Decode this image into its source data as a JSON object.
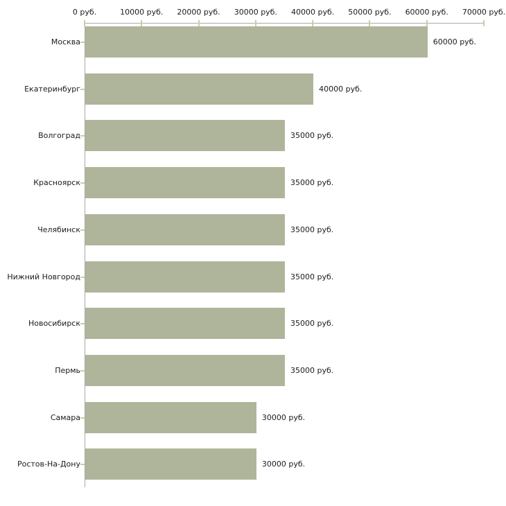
{
  "chart_data": {
    "type": "bar",
    "orientation": "horizontal",
    "categories": [
      "Москва",
      "Екатеринбург",
      "Волгоград",
      "Красноярск",
      "Челябинск",
      "Нижний Новгород",
      "Новосибирск",
      "Пермь",
      "Самара",
      "Ростов-На-Дону"
    ],
    "values": [
      60000,
      40000,
      35000,
      35000,
      35000,
      35000,
      35000,
      35000,
      30000,
      30000
    ],
    "value_labels": [
      "60000 руб.",
      "40000 руб.",
      "35000 руб.",
      "35000 руб.",
      "35000 руб.",
      "35000 руб.",
      "35000 руб.",
      "35000 руб.",
      "30000 руб.",
      "30000 руб."
    ],
    "x_ticks": [
      0,
      10000,
      20000,
      30000,
      40000,
      50000,
      60000,
      70000
    ],
    "x_tick_labels": [
      "0 руб.",
      "10000 руб.",
      "20000 руб.",
      "30000 руб.",
      "40000 руб.",
      "50000 руб.",
      "60000 руб.",
      "70000 руб."
    ],
    "xlim": [
      0,
      70000
    ],
    "grid": false,
    "legend": null,
    "colors": {
      "bar": "#afb59a",
      "axis": "#a9a9a9",
      "tick": "#c9cca6",
      "text": "#1a1a1a",
      "background": "#ffffff"
    }
  }
}
